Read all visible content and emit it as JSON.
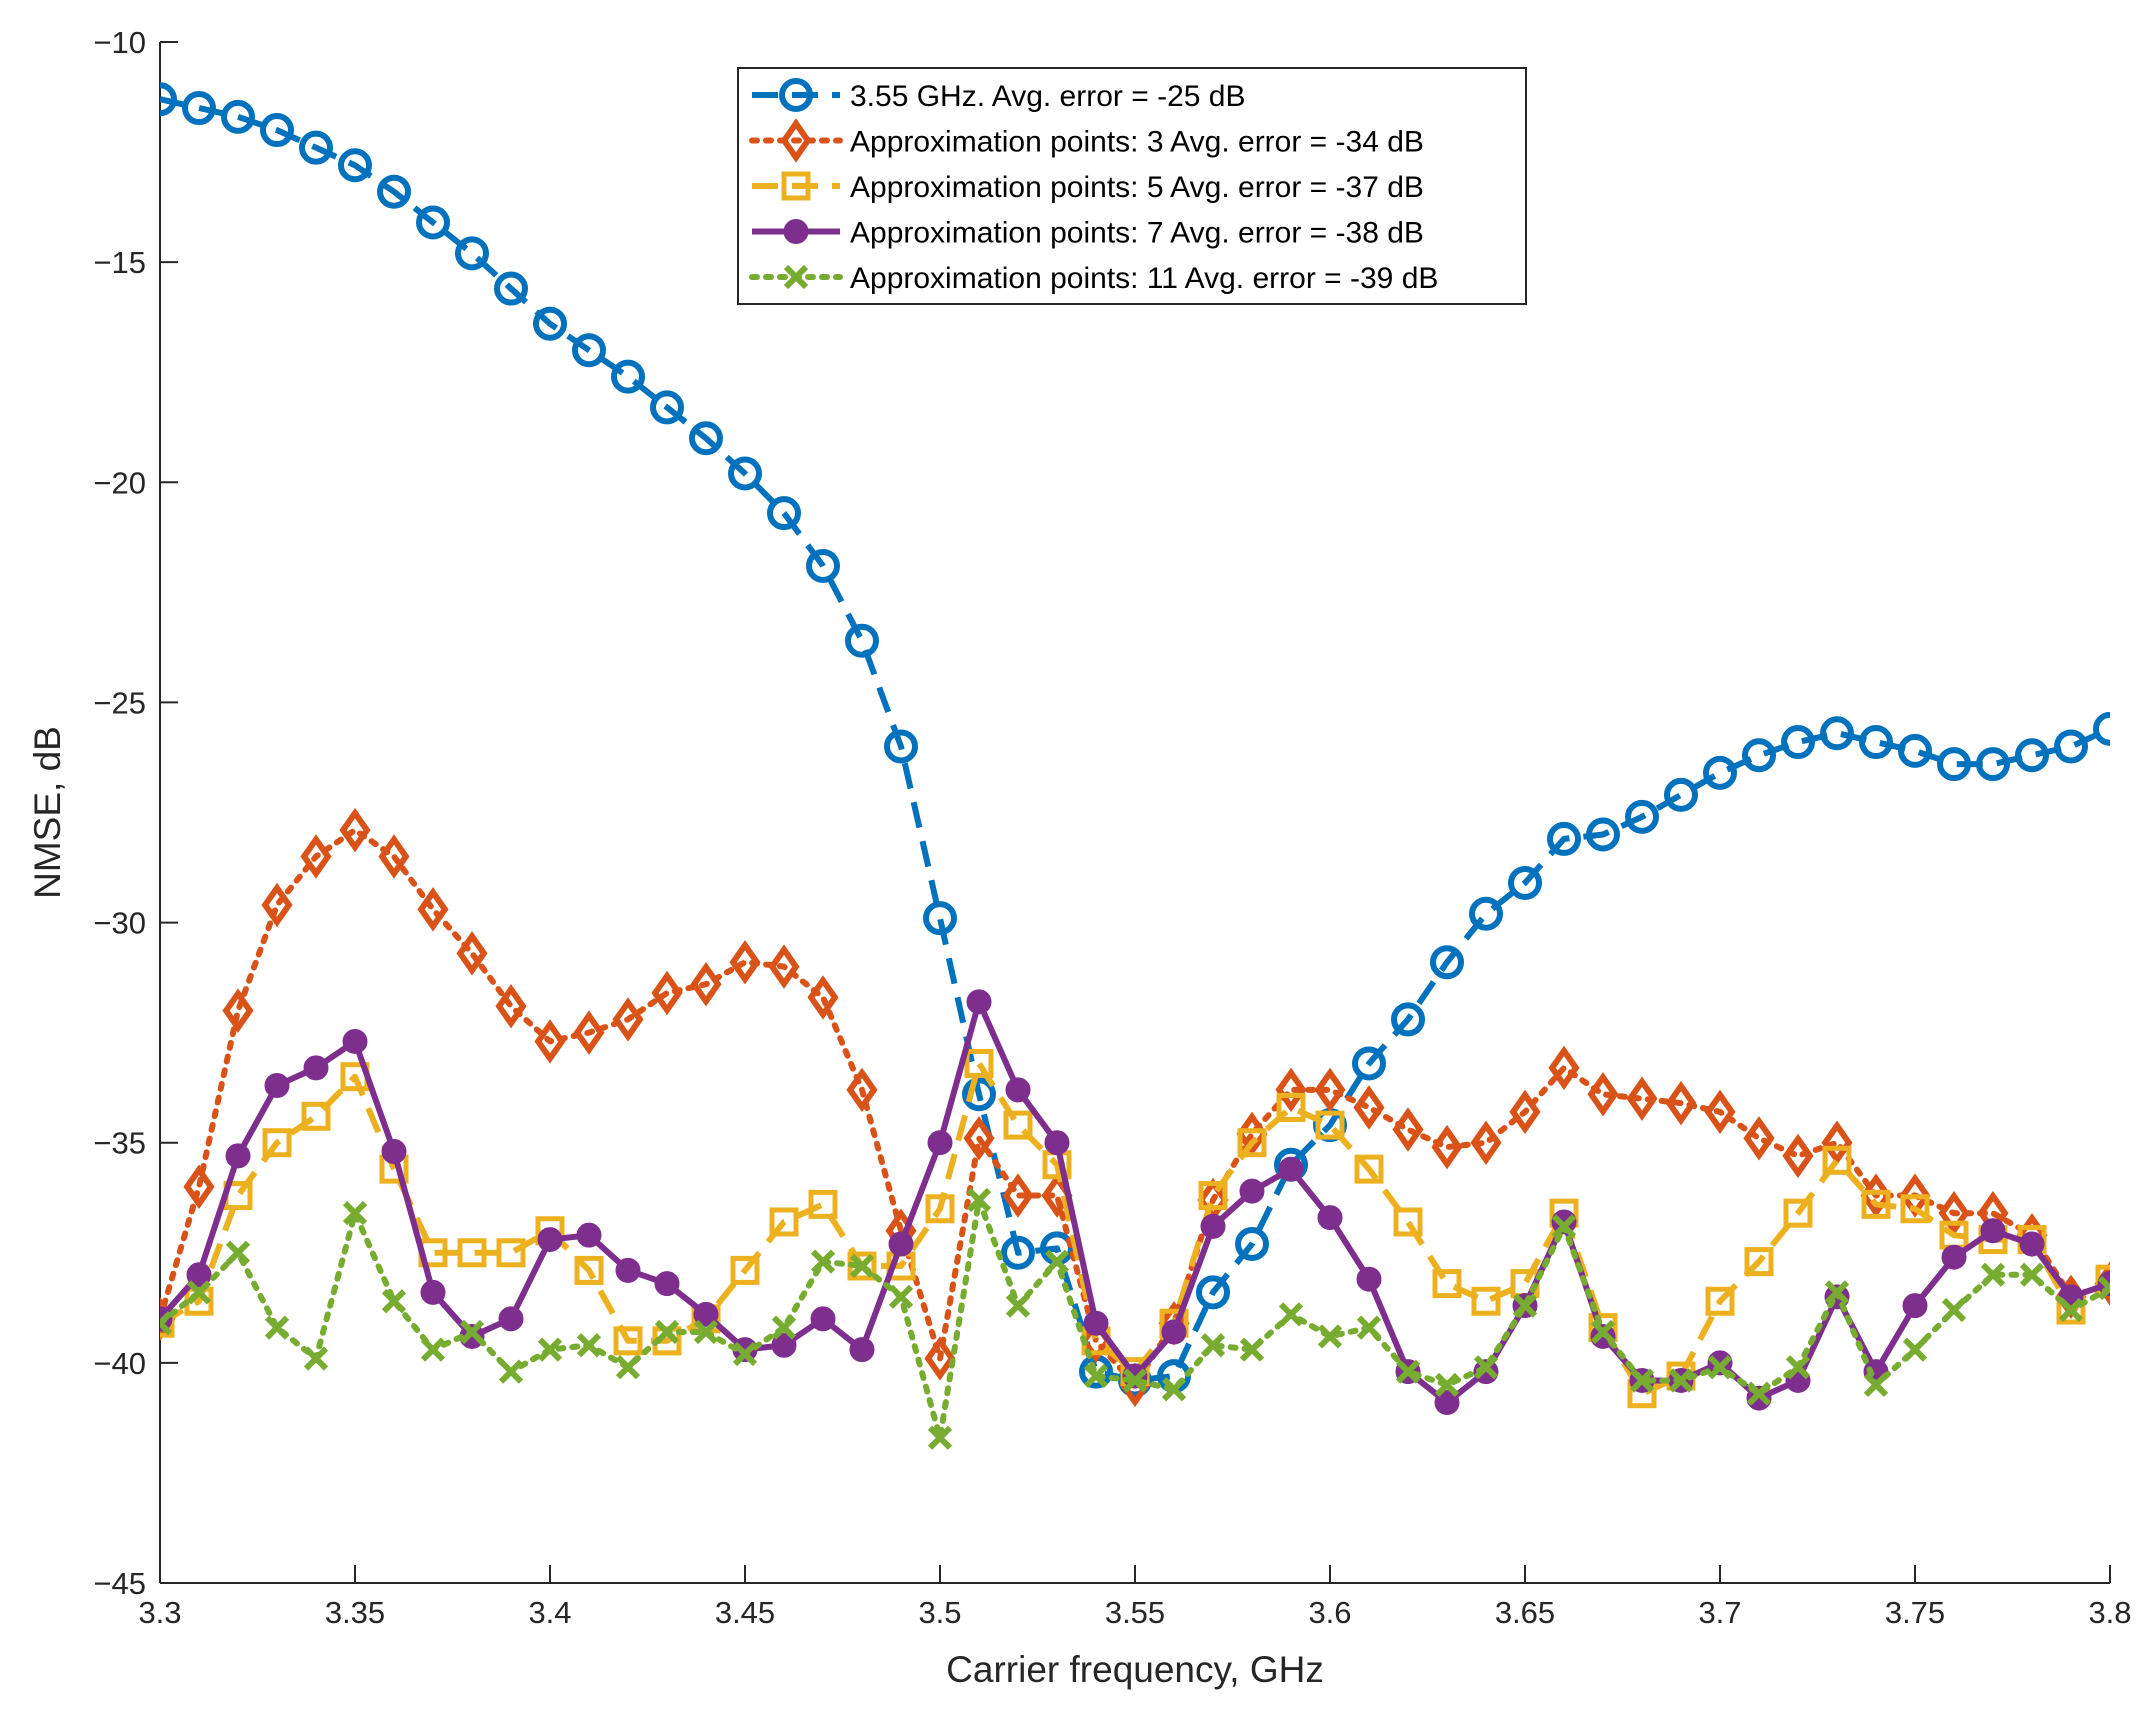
{
  "chart_data": {
    "type": "line",
    "title": "",
    "xlabel": "Carrier frequency, GHz",
    "ylabel": "NMSE, dB",
    "xlim": [
      3.3,
      3.8
    ],
    "ylim": [
      -45,
      -10
    ],
    "grid": false,
    "legend_position": "top-center",
    "x_ticks": [
      "3.3",
      "3.35",
      "3.4",
      "3.45",
      "3.5",
      "3.55",
      "3.6",
      "3.65",
      "3.7",
      "3.75",
      "3.8"
    ],
    "y_ticks": [
      "−10",
      "−15",
      "−20",
      "−25",
      "−30",
      "−35",
      "−40",
      "−45"
    ],
    "x": [
      3.3,
      3.31,
      3.32,
      3.33,
      3.34,
      3.35,
      3.36,
      3.37,
      3.38,
      3.39,
      3.4,
      3.41,
      3.42,
      3.43,
      3.44,
      3.45,
      3.46,
      3.47,
      3.48,
      3.49,
      3.5,
      3.51,
      3.52,
      3.53,
      3.54,
      3.55,
      3.56,
      3.57,
      3.58,
      3.59,
      3.6,
      3.61,
      3.62,
      3.63,
      3.64,
      3.65,
      3.66,
      3.67,
      3.68,
      3.69,
      3.7,
      3.71,
      3.72,
      3.73,
      3.74,
      3.75,
      3.76,
      3.77,
      3.78,
      3.79,
      3.8
    ],
    "series": [
      {
        "name": "3.55 GHz. Avg. error = -25 dB",
        "color": "#0072BD",
        "marker": "circle",
        "line_style": "dashed",
        "values": [
          -11.3,
          -11.5,
          -11.7,
          -12.0,
          -12.4,
          -12.8,
          -13.4,
          -14.1,
          -14.8,
          -15.6,
          -16.4,
          -17.0,
          -17.6,
          -18.3,
          -19.0,
          -19.8,
          -20.7,
          -21.9,
          -23.6,
          -26.0,
          -29.9,
          -33.9,
          -37.5,
          -37.4,
          -40.2,
          -40.4,
          -40.3,
          -38.4,
          -37.3,
          -35.5,
          -34.6,
          -33.2,
          -32.2,
          -30.9,
          -29.8,
          -29.1,
          -28.1,
          -28.0,
          -27.6,
          -27.1,
          -26.6,
          -26.2,
          -25.9,
          -25.7,
          -25.9,
          -26.1,
          -26.4,
          -26.4,
          -26.2,
          -26.0,
          -25.6
        ]
      },
      {
        "name": "Approximation points: 3 Avg. error = -34 dB",
        "color": "#D95319",
        "marker": "diamond",
        "line_style": "dotted",
        "values": [
          -39.0,
          -36.0,
          -32.0,
          -29.6,
          -28.5,
          -27.9,
          -28.5,
          -29.7,
          -30.7,
          -31.9,
          -32.7,
          -32.5,
          -32.2,
          -31.6,
          -31.4,
          -30.9,
          -31.0,
          -31.7,
          -33.8,
          -37.0,
          -39.9,
          -34.9,
          -36.2,
          -36.2,
          -39.5,
          -40.5,
          -39.1,
          -36.3,
          -34.8,
          -33.8,
          -33.8,
          -34.2,
          -34.7,
          -35.1,
          -35.0,
          -34.3,
          -33.3,
          -33.9,
          -34.0,
          -34.1,
          -34.3,
          -34.9,
          -35.3,
          -35.0,
          -36.2,
          -36.2,
          -36.6,
          -36.6,
          -37.1,
          -38.5,
          -38.2
        ]
      },
      {
        "name": "Approximation points: 5 Avg. error = -37 dB",
        "color": "#EDB120",
        "marker": "square",
        "line_style": "dashed",
        "values": [
          -39.1,
          -38.6,
          -36.2,
          -35.0,
          -34.4,
          -33.5,
          -35.6,
          -37.5,
          -37.5,
          -37.5,
          -37.0,
          -37.9,
          -39.5,
          -39.5,
          -39.0,
          -37.9,
          -36.8,
          -36.4,
          -37.8,
          -37.8,
          -36.5,
          -33.2,
          -34.6,
          -35.5,
          -39.5,
          -40.2,
          -39.1,
          -36.2,
          -35.0,
          -34.2,
          -34.6,
          -35.6,
          -36.8,
          -38.2,
          -38.6,
          -38.2,
          -36.6,
          -39.2,
          -40.7,
          -40.3,
          -38.6,
          -37.7,
          -36.6,
          -35.4,
          -36.4,
          -36.5,
          -37.1,
          -37.2,
          -37.2,
          -38.8,
          -38.1
        ]
      },
      {
        "name": "Approximation points: 7 Avg. error = -38 dB",
        "color": "#7E2F8E",
        "marker": "filled-circle",
        "line_style": "solid",
        "values": [
          -39.0,
          -38.0,
          -35.3,
          -33.7,
          -33.3,
          -32.7,
          -35.2,
          -38.4,
          -39.4,
          -39.0,
          -37.2,
          -37.1,
          -37.9,
          -38.2,
          -38.9,
          -39.7,
          -39.6,
          -39.0,
          -39.7,
          -37.3,
          -35.0,
          -31.8,
          -33.8,
          -35.0,
          -39.1,
          -40.3,
          -39.3,
          -36.9,
          -36.1,
          -35.6,
          -36.7,
          -38.1,
          -40.2,
          -40.9,
          -40.2,
          -38.7,
          -36.8,
          -39.4,
          -40.4,
          -40.4,
          -40.0,
          -40.8,
          -40.4,
          -38.5,
          -40.2,
          -38.7,
          -37.6,
          -37.0,
          -37.3,
          -38.5,
          -38.2
        ]
      },
      {
        "name": "Approximation points: 11 Avg. error = -39 dB",
        "color": "#77AC30",
        "marker": "x",
        "line_style": "dotted",
        "values": [
          -39.1,
          -38.4,
          -37.5,
          -39.2,
          -39.9,
          -36.6,
          -38.6,
          -39.7,
          -39.3,
          -40.2,
          -39.7,
          -39.6,
          -40.1,
          -39.3,
          -39.3,
          -39.8,
          -39.2,
          -37.7,
          -37.8,
          -38.5,
          -41.7,
          -36.3,
          -38.7,
          -37.7,
          -40.3,
          -40.4,
          -40.6,
          -39.6,
          -39.7,
          -38.9,
          -39.4,
          -39.2,
          -40.2,
          -40.5,
          -40.1,
          -38.7,
          -36.9,
          -39.3,
          -40.4,
          -40.4,
          -40.1,
          -40.7,
          -40.1,
          -38.4,
          -40.5,
          -39.7,
          -38.8,
          -38.0,
          -38.0,
          -38.8,
          -38.3
        ]
      }
    ]
  }
}
